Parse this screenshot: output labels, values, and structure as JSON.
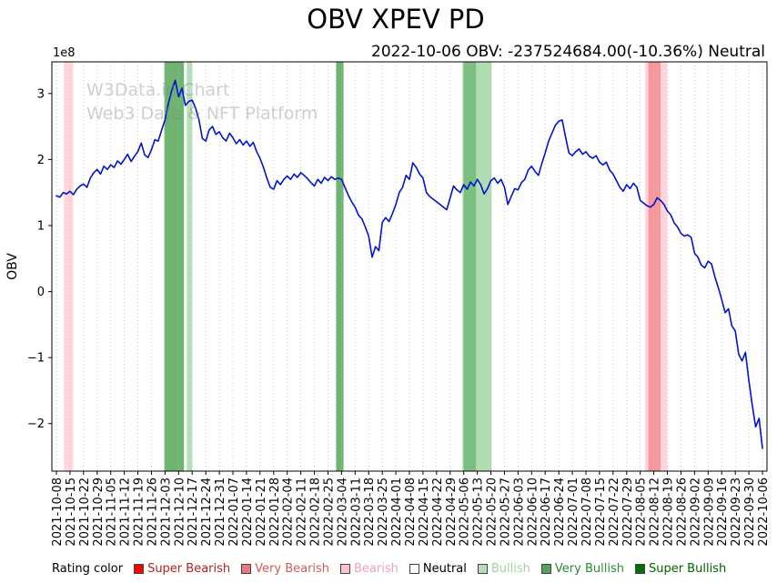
{
  "title": "OBV XPEV PD",
  "subtitle": "2022-10-06 OBV: -237524684.00(-10.36%) Neutral",
  "watermark": {
    "line1": "W3Data.io Chart",
    "line2": "Web3 Data & NFT Platform"
  },
  "axis": {
    "y_label": "OBV",
    "y_offset_label": "1e8"
  },
  "legend": {
    "title": "Rating color",
    "items": [
      {
        "label": "Super Bearish",
        "color": "#ff0000",
        "text_color": "#b22222"
      },
      {
        "label": "Very Bearish",
        "color": "#ee7777",
        "text_color": "#cd5c5c"
      },
      {
        "label": "Bearish",
        "color": "#ffc0cb",
        "text_color": "#f0a3b4"
      },
      {
        "label": "Neutral",
        "color": "#ffffff",
        "text_color": "#000000"
      },
      {
        "label": "Bullish",
        "color": "#b7ddb7",
        "text_color": "#a4d2a4"
      },
      {
        "label": "Very Bullish",
        "color": "#57a05a",
        "text_color": "#2e8b2e"
      },
      {
        "label": "Super Bullish",
        "color": "#007000",
        "text_color": "#006400"
      }
    ]
  },
  "chart_data": {
    "type": "line",
    "title": "OBV XPEV PD",
    "ylabel": "OBV",
    "y_unit": "1e8",
    "ylim": [
      -2.72,
      3.48
    ],
    "yticks": [
      3,
      2,
      1,
      0,
      -1,
      -2
    ],
    "line_color": "#0014cc",
    "grid_color": "#bbbbbb",
    "categories": [
      "2021-10-08",
      "2021-10-15",
      "2021-10-22",
      "2021-10-29",
      "2021-11-05",
      "2021-11-12",
      "2021-11-19",
      "2021-11-26",
      "2021-12-03",
      "2021-12-10",
      "2021-12-17",
      "2021-12-24",
      "2021-12-31",
      "2022-01-07",
      "2022-01-14",
      "2022-01-21",
      "2022-01-28",
      "2022-02-04",
      "2022-02-11",
      "2022-02-18",
      "2022-02-25",
      "2022-03-04",
      "2022-03-11",
      "2022-03-18",
      "2022-03-25",
      "2022-04-01",
      "2022-04-08",
      "2022-04-15",
      "2022-04-22",
      "2022-04-29",
      "2022-05-06",
      "2022-05-13",
      "2022-05-20",
      "2022-05-27",
      "2022-06-03",
      "2022-06-10",
      "2022-06-17",
      "2022-06-24",
      "2022-07-01",
      "2022-07-08",
      "2022-07-15",
      "2022-07-22",
      "2022-07-29",
      "2022-08-05",
      "2022-08-12",
      "2022-08-19",
      "2022-08-26",
      "2022-09-02",
      "2022-09-09",
      "2022-09-16",
      "2022-09-23",
      "2022-09-30",
      "2022-10-06"
    ],
    "bands": [
      {
        "rating": "Bearish",
        "from": 0.55,
        "to": 1.25,
        "color": "#ffb6c1",
        "opacity": 0.55
      },
      {
        "rating": "Very Bullish",
        "from": 7.95,
        "to": 9.4,
        "color": "#3f9c42",
        "opacity": 0.75
      },
      {
        "rating": "Bullish",
        "from": 9.6,
        "to": 10.0,
        "color": "#7cc47e",
        "opacity": 0.55
      },
      {
        "rating": "Very Bullish",
        "from": 20.6,
        "to": 21.15,
        "color": "#3f9c42",
        "opacity": 0.75
      },
      {
        "rating": "Bullish",
        "from": 29.9,
        "to": 32.05,
        "color": "#7cc47e",
        "opacity": 0.6
      },
      {
        "rating": "Very Bullish",
        "from": 30.0,
        "to": 30.9,
        "color": "#3f9c42",
        "opacity": 0.45
      },
      {
        "rating": "Bearish",
        "from": 43.35,
        "to": 45.0,
        "color": "#ffb6c1",
        "opacity": 0.6
      },
      {
        "rating": "Very Bearish",
        "from": 43.6,
        "to": 44.5,
        "color": "#f08080",
        "opacity": 0.7
      }
    ],
    "series": [
      {
        "name": "OBV",
        "x_step": 0.25,
        "values": [
          1.45,
          1.43,
          1.5,
          1.48,
          1.52,
          1.47,
          1.55,
          1.6,
          1.63,
          1.58,
          1.72,
          1.8,
          1.85,
          1.78,
          1.9,
          1.85,
          1.92,
          1.88,
          1.98,
          1.93,
          2.0,
          2.08,
          1.97,
          2.05,
          2.12,
          2.25,
          2.07,
          2.03,
          2.15,
          2.3,
          2.28,
          2.45,
          2.6,
          2.85,
          3.05,
          3.2,
          2.95,
          3.08,
          2.82,
          2.88,
          2.9,
          2.78,
          2.6,
          2.32,
          2.28,
          2.45,
          2.5,
          2.38,
          2.42,
          2.33,
          2.28,
          2.4,
          2.33,
          2.24,
          2.3,
          2.22,
          2.28,
          2.2,
          2.26,
          2.12,
          2.02,
          1.88,
          1.72,
          1.58,
          1.55,
          1.68,
          1.62,
          1.7,
          1.75,
          1.7,
          1.78,
          1.73,
          1.8,
          1.76,
          1.71,
          1.65,
          1.6,
          1.7,
          1.64,
          1.73,
          1.68,
          1.74,
          1.7,
          1.72,
          1.7,
          1.58,
          1.46,
          1.36,
          1.28,
          1.16,
          1.1,
          0.98,
          0.84,
          0.52,
          0.68,
          0.62,
          1.05,
          1.12,
          1.06,
          1.18,
          1.32,
          1.5,
          1.58,
          1.76,
          1.7,
          1.95,
          1.88,
          1.78,
          1.72,
          1.5,
          1.44,
          1.4,
          1.36,
          1.32,
          1.28,
          1.24,
          1.42,
          1.6,
          1.54,
          1.5,
          1.62,
          1.55,
          1.66,
          1.6,
          1.7,
          1.62,
          1.48,
          1.56,
          1.68,
          1.72,
          1.64,
          1.7,
          1.58,
          1.32,
          1.44,
          1.56,
          1.54,
          1.65,
          1.7,
          1.84,
          1.9,
          1.82,
          1.76,
          1.94,
          2.1,
          2.28,
          2.4,
          2.52,
          2.58,
          2.6,
          2.34,
          2.1,
          2.06,
          2.12,
          2.16,
          2.08,
          2.12,
          2.05,
          2.02,
          2.06,
          1.96,
          1.92,
          1.96,
          1.84,
          1.78,
          1.68,
          1.58,
          1.52,
          1.62,
          1.56,
          1.64,
          1.58,
          1.38,
          1.34,
          1.3,
          1.28,
          1.32,
          1.42,
          1.38,
          1.32,
          1.22,
          1.16,
          1.04,
          0.98,
          0.88,
          0.84,
          0.86,
          0.82,
          0.58,
          0.52,
          0.4,
          0.36,
          0.46,
          0.42,
          0.22,
          0.06,
          -0.12,
          -0.32,
          -0.26,
          -0.52,
          -0.6,
          -0.95,
          -1.05,
          -0.92,
          -1.35,
          -1.72,
          -2.05,
          -1.92,
          -2.375
        ]
      }
    ]
  }
}
